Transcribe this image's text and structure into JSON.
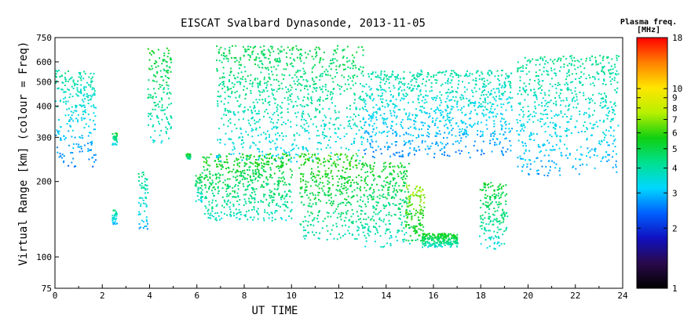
{
  "chart_data": {
    "type": "scatter",
    "title": "EISCAT Svalbard Dynasonde, 2013-11-05",
    "xlabel": "UT TIME",
    "ylabel": "Virtual Range [km] (colour = Freq)",
    "xlim": [
      0,
      24
    ],
    "ylim": [
      75,
      750
    ],
    "yscale": "log",
    "grid": false,
    "xticks": [
      0,
      2,
      4,
      6,
      8,
      10,
      12,
      14,
      16,
      18,
      20,
      22,
      24
    ],
    "yticks": [
      75,
      100,
      200,
      300,
      400,
      500,
      600,
      750
    ],
    "colorbar": {
      "title": "Plasma freq.",
      "units": "[MHz]",
      "scale": "log",
      "range": [
        1,
        18
      ],
      "ticks": [
        1,
        2,
        3,
        4,
        5,
        6,
        7,
        8,
        9,
        10,
        18
      ],
      "colors": [
        "#000000",
        "#2a0a4a",
        "#1010c0",
        "#0060ff",
        "#00d8ff",
        "#00e090",
        "#10d010",
        "#b8f000",
        "#ffe600",
        "#ff8000",
        "#ff0000"
      ]
    },
    "clusters": [
      {
        "x": [
          0.0,
          1.7
        ],
        "ylow": 230,
        "yhigh": 560,
        "freq": 3.3
      },
      {
        "x": [
          2.4,
          2.6
        ],
        "ylow": 135,
        "yhigh": 155,
        "freq": 3.6
      },
      {
        "x": [
          2.4,
          2.6
        ],
        "ylow": 280,
        "yhigh": 315,
        "freq": 4.2
      },
      {
        "x": [
          3.5,
          3.9
        ],
        "ylow": 125,
        "yhigh": 220,
        "freq": 3.5
      },
      {
        "x": [
          3.9,
          4.9
        ],
        "ylow": 285,
        "yhigh": 690,
        "freq": 4.4
      },
      {
        "x": [
          5.5,
          5.7
        ],
        "ylow": 245,
        "yhigh": 260,
        "freq": 4.5
      },
      {
        "x": [
          5.9,
          6.2
        ],
        "ylow": 165,
        "yhigh": 215,
        "freq": 4.2
      },
      {
        "x": [
          6.2,
          10.0
        ],
        "ylow": 140,
        "yhigh": 260,
        "freq": 4.6
      },
      {
        "x": [
          6.8,
          13.0
        ],
        "ylow": 240,
        "yhigh": 700,
        "freq": 4.0
      },
      {
        "x": [
          10.3,
          13.0
        ],
        "ylow": 118,
        "yhigh": 260,
        "freq": 4.9
      },
      {
        "x": [
          13.0,
          15.0
        ],
        "ylow": 110,
        "yhigh": 240,
        "freq": 4.5
      },
      {
        "x": [
          13.0,
          19.3
        ],
        "ylow": 250,
        "yhigh": 560,
        "freq": 3.3
      },
      {
        "x": [
          14.8,
          15.6
        ],
        "ylow": 115,
        "yhigh": 195,
        "freq": 6.0
      },
      {
        "x": [
          15.5,
          17.0
        ],
        "ylow": 110,
        "yhigh": 125,
        "freq": 4.6
      },
      {
        "x": [
          17.9,
          19.1
        ],
        "ylow": 108,
        "yhigh": 200,
        "freq": 4.4
      },
      {
        "x": [
          19.5,
          23.8
        ],
        "ylow": 210,
        "yhigh": 640,
        "freq": 3.5
      }
    ]
  }
}
